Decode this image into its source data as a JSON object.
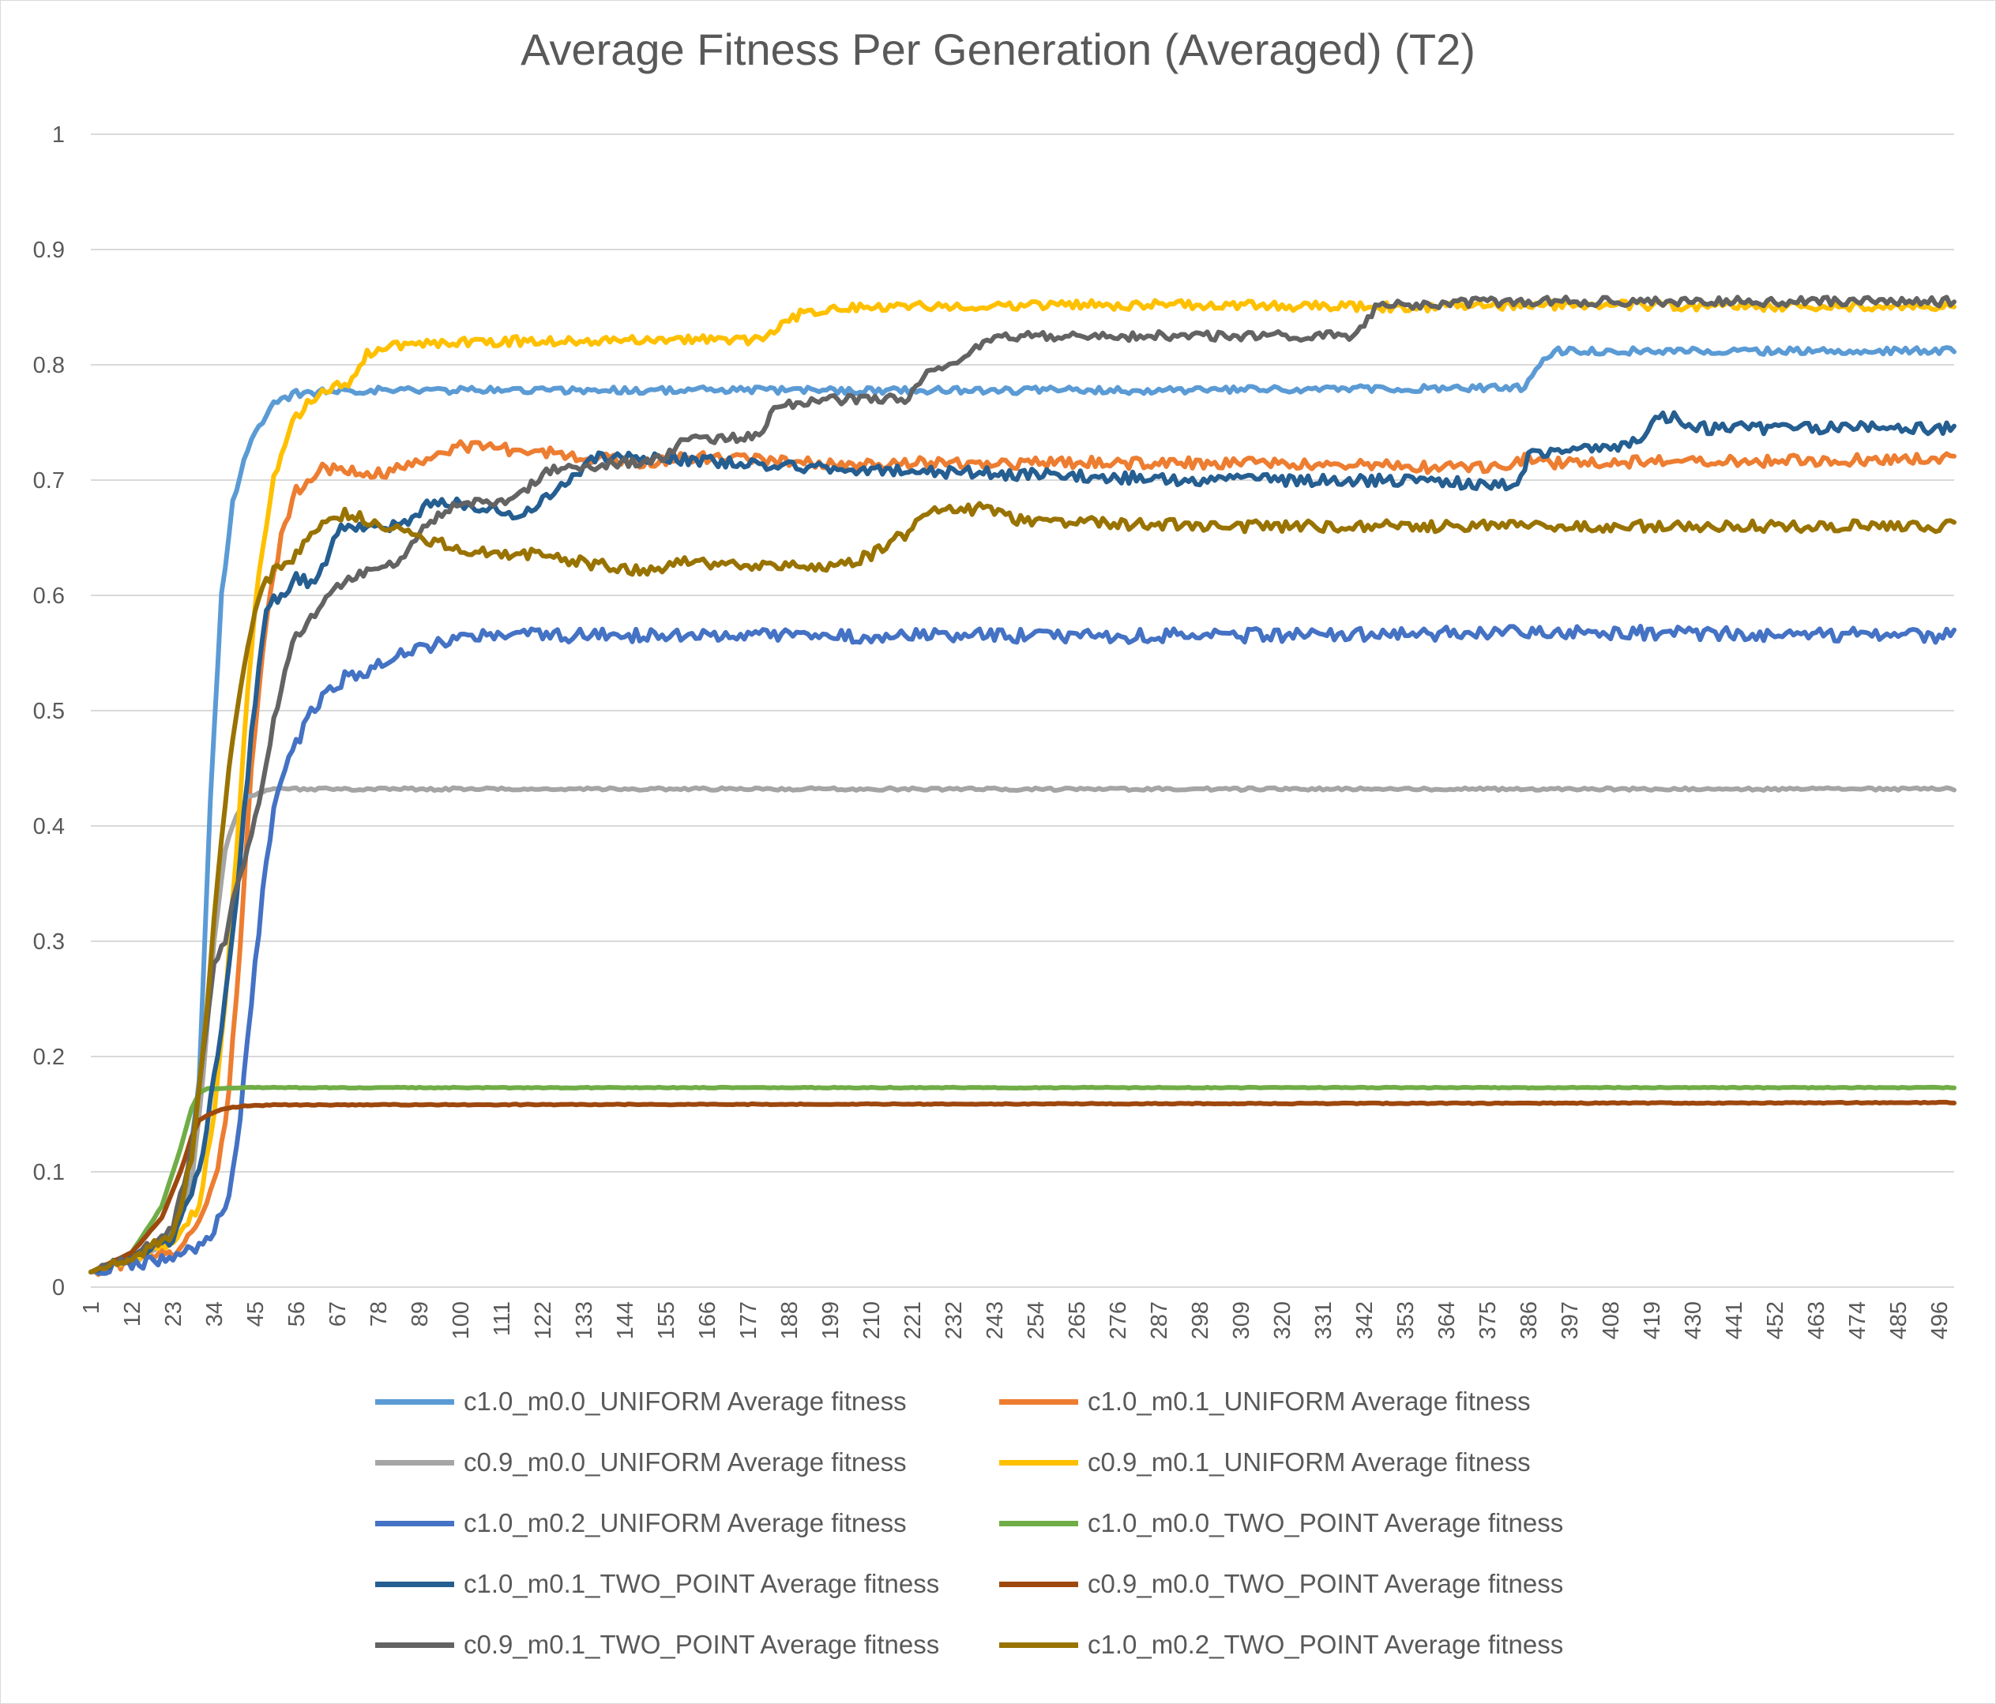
{
  "chart_data": {
    "type": "line",
    "title": "Average Fitness Per Generation (Averaged) (T2)",
    "xlabel": "",
    "ylabel": "",
    "x_range": [
      1,
      500
    ],
    "ylim": [
      0,
      1
    ],
    "y_ticks": [
      0,
      0.1,
      0.2,
      0.3,
      0.4,
      0.5,
      0.6,
      0.7,
      0.8,
      0.9,
      1
    ],
    "y_tick_labels": [
      "0",
      "0.1",
      "0.2",
      "0.3",
      "0.4",
      "0.5",
      "0.6",
      "0.7",
      "0.8",
      "0.9",
      "1"
    ],
    "x_tick_labels": [
      "1",
      "12",
      "23",
      "34",
      "45",
      "56",
      "67",
      "78",
      "89",
      "100",
      "111",
      "122",
      "133",
      "144",
      "155",
      "166",
      "177",
      "188",
      "199",
      "210",
      "221",
      "232",
      "243",
      "254",
      "265",
      "276",
      "287",
      "298",
      "309",
      "320",
      "331",
      "342",
      "353",
      "364",
      "375",
      "386",
      "397",
      "408",
      "419",
      "430",
      "441",
      "452",
      "463",
      "474",
      "485",
      "496"
    ],
    "grid": "horizontal",
    "legend_position": "bottom",
    "series": [
      {
        "name": "c1.0_m0.0_UNIFORM Average fitness",
        "color": "#5B9BD5",
        "noise": 0.003,
        "x": [
          1,
          12,
          20,
          26,
          30,
          33,
          36,
          39,
          42,
          45,
          50,
          56,
          70,
          100,
          200,
          300,
          385,
          389,
          393,
          400,
          496
        ],
        "y": [
          0.013,
          0.025,
          0.035,
          0.07,
          0.18,
          0.42,
          0.6,
          0.68,
          0.72,
          0.74,
          0.765,
          0.775,
          0.778,
          0.778,
          0.778,
          0.778,
          0.78,
          0.8,
          0.812,
          0.812,
          0.812
        ]
      },
      {
        "name": "c1.0_m0.1_UNIFORM Average fitness",
        "color": "#ED7D31",
        "noise": 0.005,
        "x": [
          1,
          12,
          23,
          30,
          35,
          38,
          41,
          44,
          48,
          52,
          56,
          62,
          70,
          80,
          95,
          100,
          120,
          150,
          160,
          200,
          300,
          380,
          386,
          390,
          496
        ],
        "y": [
          0.013,
          0.022,
          0.03,
          0.055,
          0.1,
          0.17,
          0.3,
          0.45,
          0.58,
          0.65,
          0.69,
          0.71,
          0.71,
          0.705,
          0.725,
          0.73,
          0.725,
          0.715,
          0.72,
          0.715,
          0.715,
          0.71,
          0.72,
          0.715,
          0.718
        ]
      },
      {
        "name": "c0.9_m0.0_UNIFORM Average fitness",
        "color": "#A5A5A5",
        "noise": 0.0012,
        "x": [
          1,
          12,
          23,
          28,
          31,
          34,
          37,
          40,
          43,
          47,
          52,
          60,
          496
        ],
        "y": [
          0.013,
          0.025,
          0.04,
          0.09,
          0.18,
          0.3,
          0.38,
          0.41,
          0.425,
          0.43,
          0.432,
          0.432,
          0.432
        ]
      },
      {
        "name": "c0.9_m0.1_UNIFORM Average fitness",
        "color": "#FFC000",
        "noise": 0.004,
        "x": [
          1,
          12,
          23,
          30,
          34,
          37,
          40,
          43,
          46,
          50,
          55,
          60,
          65,
          70,
          75,
          78,
          85,
          100,
          150,
          180,
          188,
          192,
          200,
          250,
          300,
          350,
          400,
          496
        ],
        "y": [
          0.013,
          0.025,
          0.04,
          0.07,
          0.15,
          0.25,
          0.38,
          0.52,
          0.62,
          0.7,
          0.75,
          0.77,
          0.78,
          0.785,
          0.81,
          0.812,
          0.818,
          0.82,
          0.822,
          0.822,
          0.84,
          0.845,
          0.85,
          0.852,
          0.852,
          0.85,
          0.852,
          0.85
        ]
      },
      {
        "name": "c1.0_m0.2_UNIFORM Average fitness",
        "color": "#4472C4",
        "noise": 0.006,
        "x": [
          1,
          12,
          23,
          30,
          34,
          38,
          41,
          44,
          47,
          50,
          53,
          56,
          60,
          65,
          70,
          75,
          80,
          90,
          100,
          200,
          300,
          400,
          496
        ],
        "y": [
          0.013,
          0.02,
          0.025,
          0.033,
          0.05,
          0.08,
          0.15,
          0.25,
          0.34,
          0.41,
          0.45,
          0.47,
          0.5,
          0.52,
          0.53,
          0.535,
          0.545,
          0.555,
          0.565,
          0.565,
          0.565,
          0.568,
          0.565
        ]
      },
      {
        "name": "c1.0_m0.0_TWO_POINT Average fitness",
        "color": "#70AD47",
        "noise": 0.0004,
        "x": [
          1,
          12,
          20,
          25,
          28,
          30,
          32,
          40,
          496
        ],
        "y": [
          0.013,
          0.03,
          0.07,
          0.12,
          0.155,
          0.168,
          0.172,
          0.173,
          0.173
        ]
      },
      {
        "name": "c1.0_m0.1_TWO_POINT Average fitness",
        "color": "#255E91",
        "noise": 0.005,
        "x": [
          1,
          12,
          23,
          30,
          35,
          40,
          44,
          48,
          52,
          56,
          60,
          64,
          68,
          72,
          76,
          80,
          86,
          90,
          92,
          100,
          110,
          115,
          120,
          125,
          130,
          135,
          140,
          150,
          200,
          250,
          300,
          350,
          383,
          386,
          390,
          400,
          410,
          416,
          420,
          425,
          430,
          440,
          496
        ],
        "y": [
          0.013,
          0.025,
          0.04,
          0.1,
          0.2,
          0.34,
          0.48,
          0.59,
          0.6,
          0.615,
          0.61,
          0.63,
          0.66,
          0.66,
          0.66,
          0.66,
          0.665,
          0.675,
          0.68,
          0.68,
          0.675,
          0.67,
          0.675,
          0.69,
          0.7,
          0.72,
          0.72,
          0.72,
          0.71,
          0.705,
          0.7,
          0.7,
          0.695,
          0.72,
          0.725,
          0.725,
          0.73,
          0.735,
          0.755,
          0.755,
          0.745,
          0.745,
          0.745
        ]
      },
      {
        "name": "c0.9_m0.0_TWO_POINT Average fitness",
        "color": "#9E480E",
        "noise": 0.0004,
        "x": [
          1,
          12,
          20,
          25,
          28,
          30,
          33,
          37,
          42,
          50,
          496
        ],
        "y": [
          0.013,
          0.03,
          0.06,
          0.1,
          0.13,
          0.145,
          0.15,
          0.155,
          0.157,
          0.158,
          0.16
        ]
      },
      {
        "name": "c0.9_m0.1_TWO_POINT Average fitness",
        "color": "#636363",
        "noise": 0.004,
        "x": [
          1,
          12,
          23,
          28,
          31,
          34,
          37,
          40,
          43,
          46,
          50,
          55,
          60,
          65,
          70,
          75,
          80,
          85,
          88,
          92,
          100,
          110,
          115,
          120,
          125,
          130,
          135,
          140,
          150,
          155,
          160,
          165,
          170,
          180,
          185,
          190,
          200,
          215,
          220,
          225,
          230,
          235,
          240,
          245,
          250,
          300,
          330,
          340,
          345,
          350,
          380,
          496
        ],
        "y": [
          0.013,
          0.025,
          0.05,
          0.12,
          0.2,
          0.28,
          0.3,
          0.35,
          0.38,
          0.42,
          0.49,
          0.56,
          0.58,
          0.6,
          0.615,
          0.62,
          0.625,
          0.63,
          0.65,
          0.665,
          0.68,
          0.68,
          0.685,
          0.7,
          0.71,
          0.71,
          0.71,
          0.715,
          0.715,
          0.72,
          0.735,
          0.735,
          0.735,
          0.74,
          0.765,
          0.765,
          0.77,
          0.77,
          0.77,
          0.795,
          0.8,
          0.805,
          0.82,
          0.825,
          0.825,
          0.825,
          0.825,
          0.825,
          0.85,
          0.852,
          0.855,
          0.855
        ]
      },
      {
        "name": "c1.0_m0.2_TWO_POINT Average fitness",
        "color": "#997300",
        "noise": 0.005,
        "x": [
          1,
          12,
          23,
          28,
          31,
          34,
          37,
          40,
          43,
          46,
          50,
          55,
          60,
          65,
          70,
          75,
          80,
          85,
          90,
          100,
          120,
          140,
          150,
          160,
          180,
          200,
          210,
          215,
          220,
          225,
          230,
          240,
          250,
          300,
          350,
          400,
          496
        ],
        "y": [
          0.013,
          0.025,
          0.045,
          0.11,
          0.2,
          0.32,
          0.42,
          0.5,
          0.56,
          0.6,
          0.62,
          0.63,
          0.655,
          0.67,
          0.67,
          0.665,
          0.66,
          0.655,
          0.65,
          0.64,
          0.635,
          0.625,
          0.62,
          0.63,
          0.625,
          0.625,
          0.635,
          0.645,
          0.655,
          0.67,
          0.675,
          0.675,
          0.665,
          0.66,
          0.66,
          0.66,
          0.66
        ]
      }
    ]
  }
}
